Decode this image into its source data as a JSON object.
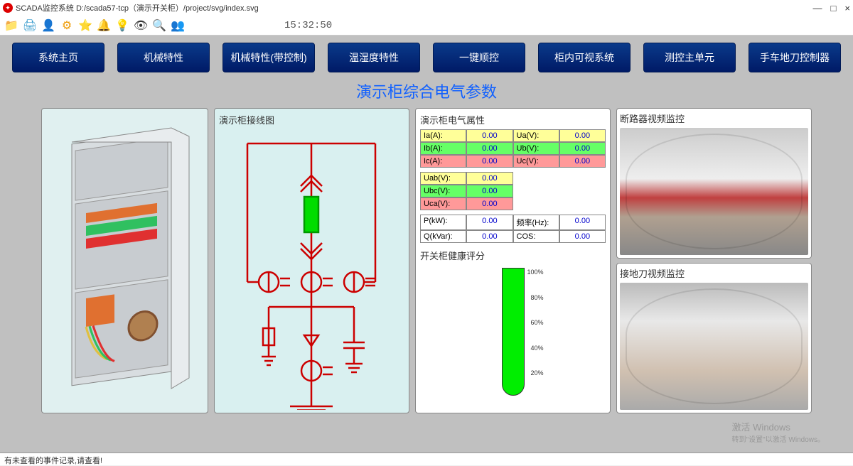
{
  "window": {
    "title": "SCADA监控系统 D:/scada57-tcp（演示开关柜）/project/svg/index.svg",
    "min": "—",
    "max": "□",
    "close": "×"
  },
  "toolbar_icons": [
    "📁",
    "🖨",
    "👤",
    "⚙",
    "⭐",
    "🔔",
    "💡",
    "👁",
    "🔍",
    "👥"
  ],
  "time": "15:32:50",
  "nav": [
    "系统主页",
    "机械特性",
    "机械特性(带控制)",
    "温湿度特性",
    "一键顺控",
    "柜内可视系统",
    "测控主单元",
    "手车地刀控制器"
  ],
  "main_title": "演示柜综合电气参数",
  "panel2_title": "演示柜接线图",
  "panel3_title": "演示柜电气属性",
  "health_title": "开关柜健康评分",
  "cam1_title": "断路器视频监控",
  "cam2_title": "接地刀视频监控",
  "params": {
    "row1": [
      {
        "k": "Ia(A):",
        "v": "0.00",
        "bg": "y"
      },
      {
        "k": "Ua(V):",
        "v": "0.00",
        "bg": "y"
      }
    ],
    "row2": [
      {
        "k": "Ib(A):",
        "v": "0.00",
        "bg": "g"
      },
      {
        "k": "Ub(V):",
        "v": "0.00",
        "bg": "g"
      }
    ],
    "row3": [
      {
        "k": "Ic(A):",
        "v": "0.00",
        "bg": "r"
      },
      {
        "k": "Uc(V):",
        "v": "0.00",
        "bg": "r"
      }
    ],
    "row4": [
      {
        "k": "Uab(V):",
        "v": "0.00",
        "bg": "y"
      }
    ],
    "row5": [
      {
        "k": "Ubc(V):",
        "v": "0.00",
        "bg": "g"
      }
    ],
    "row6": [
      {
        "k": "Uca(V):",
        "v": "0.00",
        "bg": "r"
      }
    ],
    "row7": [
      {
        "k": "P(kW):",
        "v": "0.00",
        "bg": "w"
      },
      {
        "k": "频率(Hz):",
        "v": "0.00",
        "bg": "w"
      }
    ],
    "row8": [
      {
        "k": "Q(kVar):",
        "v": "0.00",
        "bg": "w"
      },
      {
        "k": "COS:",
        "v": "0.00",
        "bg": "w"
      }
    ]
  },
  "gauge_ticks": [
    "100%",
    "80%",
    "60%",
    "40%",
    "20%"
  ],
  "status": "有未查看的事件记录,请查看!",
  "watermark": {
    "l1": "激活 Windows",
    "l2": "转到\"设置\"以激活 Windows。"
  },
  "colors": {
    "nav_bg": "#0a3a8a",
    "title": "#1060ff",
    "diagram": "#cc0000"
  }
}
